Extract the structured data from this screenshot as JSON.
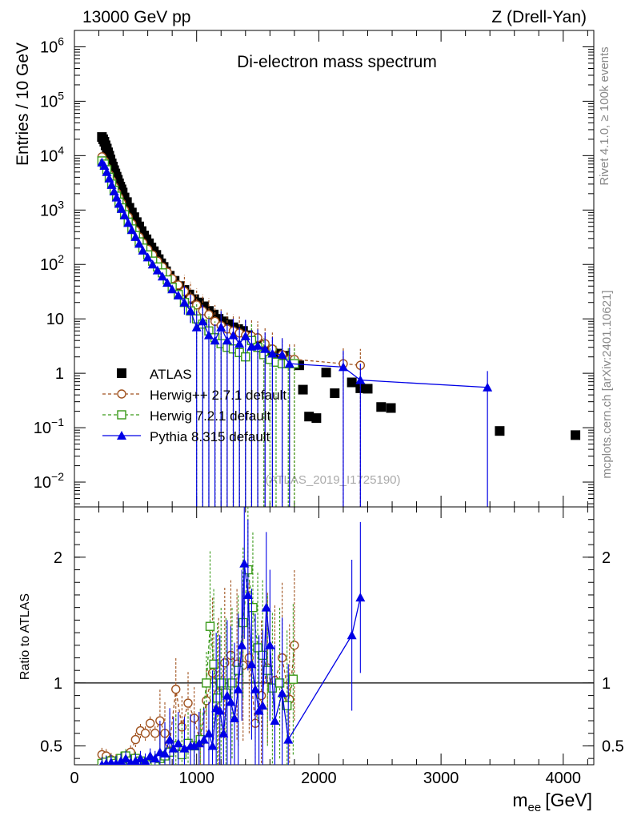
{
  "header": {
    "left": "13000 GeV pp",
    "right": "Z (Drell-Yan)"
  },
  "side_labels": {
    "rivet": "Rivet 4.1.0, ≥ 100k events",
    "mcplots": "mcplots.cern.ch [arXiv:2401.10621]"
  },
  "colors": {
    "atlas": "#000000",
    "herwigpp": "#a0521e",
    "herwig7": "#3a9a1a",
    "pythia": "#0000e6"
  },
  "chart_data": [
    {
      "type": "scatter",
      "title": "Di-electron mass spectrum",
      "ylabel": "Entries / 10 GeV",
      "yscale": "log",
      "ylim": [
        0.0035,
        2000000
      ],
      "xlim": [
        0,
        4250
      ],
      "y_ticks": [
        {
          "value": 1000000,
          "label": "10^6"
        },
        {
          "value": 100000,
          "label": "10^5"
        },
        {
          "value": 10000,
          "label": "10^4"
        },
        {
          "value": 1000,
          "label": "10^3"
        },
        {
          "value": 100,
          "label": "10^2"
        },
        {
          "value": 10,
          "label": "10"
        },
        {
          "value": 1,
          "label": "1"
        },
        {
          "value": 0.1,
          "label": "10^-1"
        },
        {
          "value": 0.01,
          "label": "10^-2"
        }
      ],
      "watermark": "(ATLAS_2019_I1725190)",
      "legend": {
        "placement": "lower-left",
        "entries": [
          {
            "key": "atlas",
            "label": "ATLAS"
          },
          {
            "key": "herwigpp",
            "label": "Herwig++ 2.7.1 default"
          },
          {
            "key": "herwig7",
            "label": "Herwig 7.2.1 default"
          },
          {
            "key": "pythia",
            "label": "Pythia 8.315 default"
          }
        ]
      },
      "series": [
        {
          "name": "ATLAS",
          "key": "atlas",
          "marker": "filled-square",
          "line": "none",
          "x": [
            225,
            235,
            245,
            255,
            265,
            275,
            285,
            295,
            305,
            315,
            325,
            335,
            345,
            355,
            365,
            375,
            385,
            395,
            410,
            430,
            450,
            470,
            490,
            510,
            530,
            550,
            570,
            590,
            610,
            630,
            650,
            670,
            690,
            710,
            730,
            750,
            780,
            820,
            860,
            900,
            940,
            980,
            1020,
            1060,
            1100,
            1140,
            1180,
            1220,
            1260,
            1300,
            1340,
            1380,
            1420,
            1460,
            1500,
            1540,
            1580,
            1620,
            1660,
            1720,
            1780,
            1840,
            1870,
            1920,
            1980,
            2060,
            2130,
            2270,
            2340,
            2400,
            2510,
            2590,
            3480,
            4100
          ],
          "y": [
            22000,
            20000,
            18000,
            15500,
            13500,
            11500,
            10000,
            8500,
            7200,
            6300,
            5400,
            4700,
            4100,
            3600,
            3100,
            2700,
            2400,
            2100,
            1700,
            1400,
            1100,
            900,
            740,
            600,
            500,
            410,
            340,
            290,
            245,
            205,
            175,
            150,
            125,
            105,
            90,
            75,
            62,
            50,
            40,
            34,
            28,
            23,
            20,
            17,
            14,
            12,
            10,
            9,
            8,
            7,
            6.5,
            6,
            5,
            4.2,
            3.5,
            3,
            2.6,
            2.4,
            2.3,
            2.1,
            1.6,
            1.4,
            0.5,
            0.16,
            0.15,
            1.03,
            0.43,
            0.68,
            0.53,
            0.52,
            0.24,
            0.23,
            0.087,
            0.073
          ]
        },
        {
          "name": "Herwig++ 2.7.1 default",
          "key": "herwigpp",
          "marker": "open-circle",
          "line": "dashed",
          "x": [
            225,
            245,
            265,
            285,
            305,
            325,
            345,
            365,
            385,
            410,
            440,
            470,
            500,
            530,
            560,
            600,
            640,
            680,
            720,
            760,
            800,
            850,
            900,
            950,
            1000,
            1050,
            1100,
            1150,
            1200,
            1250,
            1300,
            1350,
            1400,
            1450,
            1500,
            1560,
            1620,
            1700,
            1760,
            1800,
            2200,
            2340
          ],
          "y": [
            9500,
            8000,
            6000,
            4500,
            3500,
            2700,
            2100,
            1700,
            1350,
            1000,
            750,
            560,
            420,
            320,
            250,
            190,
            150,
            115,
            90,
            72,
            55,
            42,
            32,
            24,
            18,
            14,
            12,
            9,
            7.5,
            6.5,
            6,
            5.5,
            5,
            4.8,
            4.5,
            3.5,
            2.8,
            2.2,
            1.8,
            1.8,
            1.5,
            1.4
          ]
        },
        {
          "name": "Herwig 7.2.1 default",
          "key": "herwig7",
          "marker": "open-square",
          "line": "dashed",
          "x": [
            225,
            245,
            265,
            285,
            305,
            325,
            345,
            365,
            385,
            410,
            440,
            470,
            500,
            530,
            560,
            600,
            640,
            680,
            720,
            760,
            800,
            850,
            900,
            950,
            1000,
            1050,
            1100,
            1150,
            1200,
            1250,
            1300,
            1350,
            1400,
            1450,
            1500,
            1550,
            1600,
            1650,
            1700,
            1750,
            1800
          ],
          "y": [
            8000,
            7000,
            5500,
            4000,
            3000,
            2300,
            1800,
            1400,
            1100,
            820,
            600,
            450,
            340,
            260,
            200,
            150,
            115,
            90,
            70,
            52,
            38,
            28,
            20,
            14,
            10,
            8,
            6,
            4.5,
            3.5,
            3,
            2.8,
            2.4,
            2,
            4,
            3,
            2.2,
            1.8,
            1.6,
            1.5,
            1.5,
            1.5
          ]
        },
        {
          "name": "Pythia 8.315 default",
          "key": "pythia",
          "marker": "filled-triangle",
          "line": "solid",
          "x": [
            225,
            245,
            265,
            285,
            305,
            325,
            345,
            365,
            385,
            410,
            440,
            470,
            500,
            530,
            560,
            600,
            640,
            680,
            720,
            760,
            800,
            850,
            900,
            950,
            1000,
            1050,
            1100,
            1150,
            1200,
            1250,
            1300,
            1350,
            1400,
            1450,
            1500,
            1560,
            1620,
            1700,
            1760,
            2200,
            2340,
            3380
          ],
          "y": [
            7500,
            6500,
            5000,
            3800,
            2900,
            2200,
            1700,
            1300,
            1050,
            800,
            580,
            430,
            320,
            240,
            180,
            135,
            100,
            78,
            60,
            46,
            35,
            27,
            20,
            14,
            7,
            9,
            5,
            4,
            7,
            4,
            5,
            3.5,
            4.8,
            3.1,
            3.2,
            2.8,
            2.3,
            2.2,
            1.5,
            1.3,
            0.75,
            0.55
          ]
        }
      ]
    },
    {
      "type": "line",
      "ylabel": "Ratio to ATLAS",
      "xlabel": "m_ee [GeV]",
      "xlabel_main": "m",
      "xlabel_sub": "ee",
      "xlabel_unit": "[GeV]",
      "xlim": [
        0,
        4250
      ],
      "ylim": [
        0.35,
        2.4
      ],
      "reference_line": 1,
      "x_ticks": [
        0,
        1000,
        2000,
        3000,
        4000
      ],
      "x_tick_labels": [
        "0",
        "1000",
        "2000",
        "3000",
        "4000"
      ],
      "y_ticks": [
        0.5,
        1,
        2
      ],
      "y_tick_labels": [
        "0.5",
        "1",
        "2"
      ],
      "series": [
        {
          "name": "Herwig++ 2.7.1 default",
          "key": "herwigpp",
          "x": [
            225,
            260,
            300,
            340,
            380,
            420,
            460,
            500,
            540,
            580,
            620,
            660,
            700,
            740,
            780,
            830,
            880,
            930,
            980,
            1030,
            1080,
            1130,
            1180,
            1230,
            1280,
            1330,
            1380,
            1430,
            1480,
            1530,
            1580,
            1640,
            1700,
            1760,
            1800
          ],
          "y": [
            0.43,
            0.42,
            0.39,
            0.38,
            0.36,
            0.37,
            0.45,
            0.55,
            0.62,
            0.6,
            0.68,
            0.6,
            0.7,
            0.6,
            0.52,
            0.95,
            0.65,
            0.84,
            0.72,
            0.53,
            0.86,
            1.08,
            0.92,
            1.16,
            1.22,
            1.15,
            1.14,
            1.2,
            0.68,
            0.9,
            1.12,
            1.02,
            1.2,
            0.87,
            1.3
          ]
        },
        {
          "name": "Herwig 7.2.1 default",
          "key": "herwig7",
          "x": [
            225,
            260,
            300,
            340,
            380,
            420,
            460,
            500,
            540,
            580,
            620,
            660,
            700,
            740,
            780,
            830,
            880,
            930,
            980,
            1030,
            1080,
            1110,
            1140,
            1170,
            1200,
            1240,
            1290,
            1340,
            1380,
            1420,
            1460,
            1500,
            1540,
            1580,
            1620,
            1680,
            1740,
            1790
          ],
          "y": [
            0.36,
            0.37,
            0.38,
            0.36,
            0.4,
            0.42,
            0.38,
            0.4,
            0.38,
            0.36,
            0.35,
            0.38,
            0.4,
            0.42,
            0.45,
            0.5,
            0.43,
            0.52,
            0.5,
            0.55,
            1.0,
            1.45,
            1.15,
            0.88,
            1.0,
            0.92,
            1.0,
            1.1,
            1.48,
            1.9,
            1.6,
            1.28,
            1.22,
            1.1,
            0.96,
            1.0,
            0.82,
            1.03
          ]
        },
        {
          "name": "Pythia 8.315 default",
          "key": "pythia",
          "x": [
            225,
            260,
            300,
            340,
            380,
            420,
            460,
            500,
            540,
            580,
            620,
            660,
            700,
            740,
            780,
            810,
            850,
            900,
            950,
            980,
            1020,
            1060,
            1100,
            1130,
            1160,
            1190,
            1220,
            1250,
            1280,
            1310,
            1340,
            1370,
            1390,
            1420,
            1450,
            1480,
            1510,
            1540,
            1570,
            1600,
            1640,
            1700,
            1750,
            2270,
            2340
          ],
          "y": [
            0.35,
            0.36,
            0.37,
            0.36,
            0.38,
            0.4,
            0.37,
            0.38,
            0.4,
            0.38,
            0.42,
            0.4,
            0.45,
            0.44,
            0.55,
            0.48,
            0.52,
            0.48,
            0.5,
            0.5,
            0.52,
            0.55,
            0.6,
            0.5,
            0.8,
            0.78,
            0.6,
            0.9,
            0.85,
            0.72,
            0.95,
            1.3,
            1.95,
            1.7,
            1.15,
            0.95,
            0.78,
            0.82,
            1.6,
            1.3,
            0.7,
            0.92,
            0.55,
            1.38,
            1.68
          ]
        }
      ]
    }
  ]
}
